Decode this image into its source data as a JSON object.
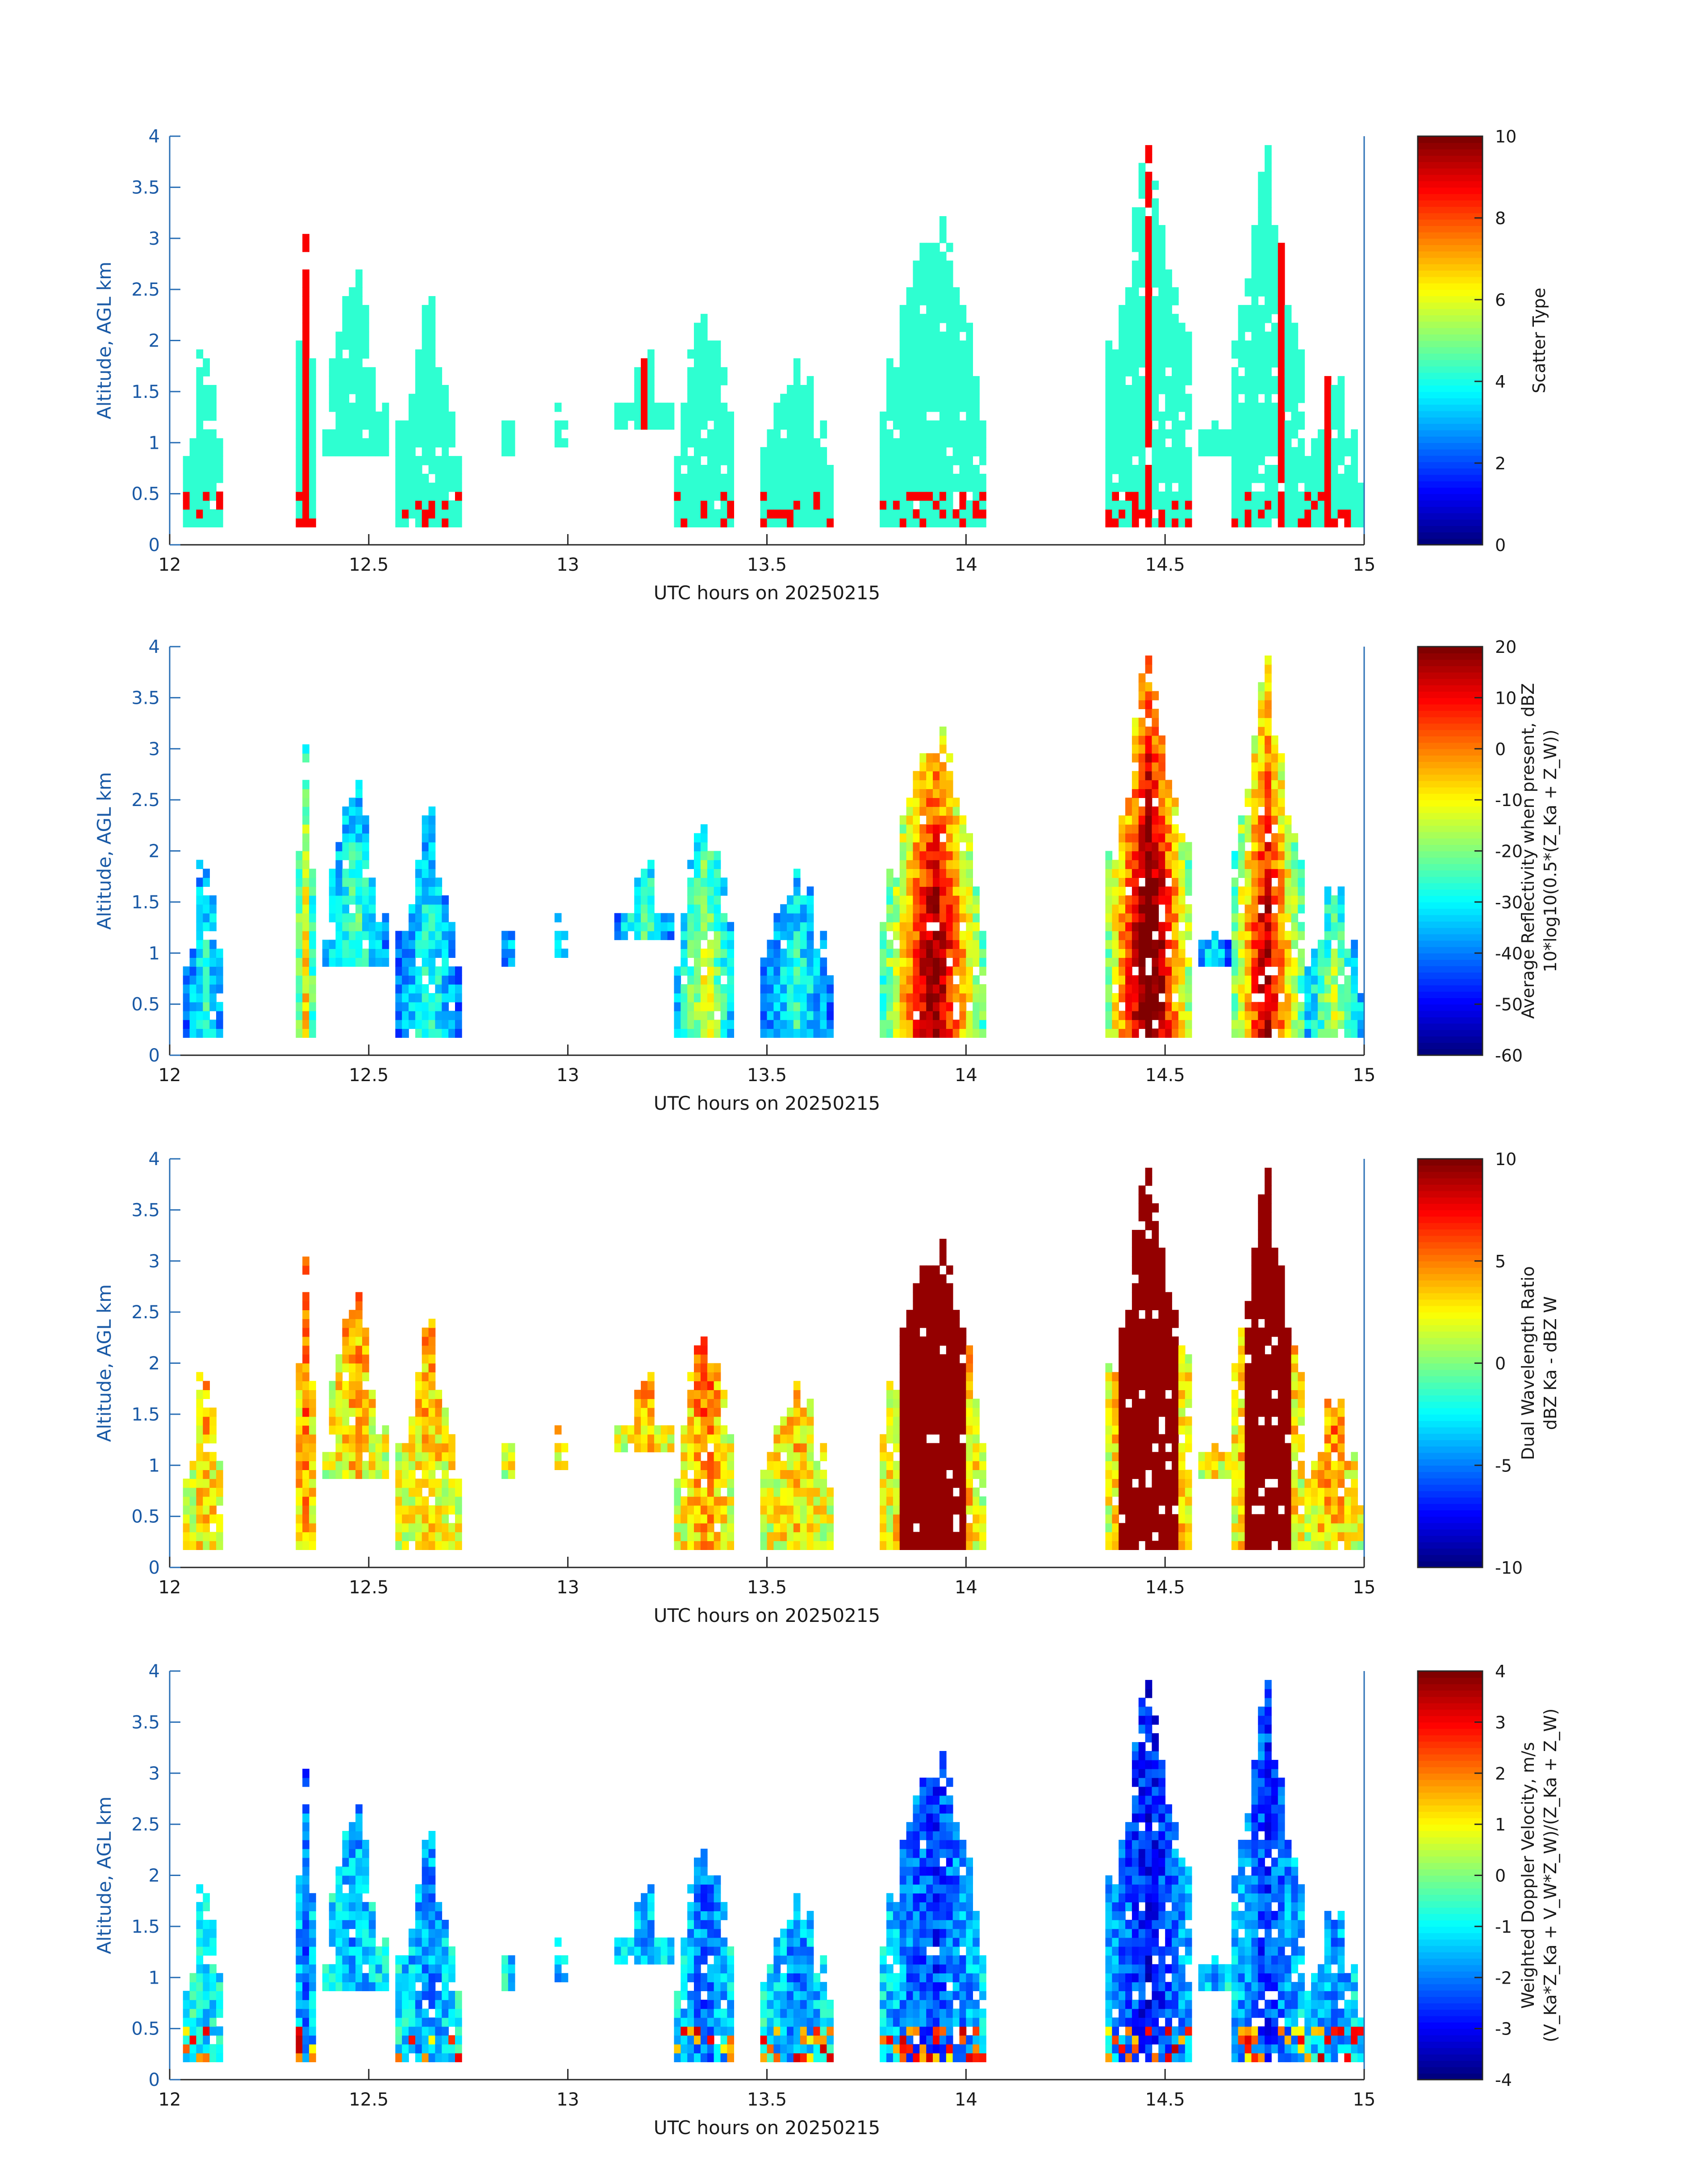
{
  "figure": {
    "xlabel": "UTC hours on 20250215",
    "ylabel": "Altitude, AGL km"
  },
  "chart_data": [
    {
      "type": "heatmap",
      "id": "scatter",
      "xlim": [
        12,
        15
      ],
      "ylim": [
        0,
        4
      ],
      "x_ticks": [
        "12",
        "12.5",
        "13",
        "13.5",
        "14",
        "14.5",
        "15"
      ],
      "y_ticks": [
        "0",
        "0.5",
        "1",
        "1.5",
        "2",
        "2.5",
        "3",
        "3.5",
        "4"
      ],
      "xlabel": "UTC hours on 20250215",
      "ylabel": "Altitude, AGL km",
      "colorbar": {
        "min": 0,
        "max": 10,
        "ticks": [
          "0",
          "2",
          "4",
          "6",
          "8",
          "10"
        ],
        "label_lines": [
          "Scatter Type"
        ]
      }
    },
    {
      "type": "heatmap",
      "id": "reflectivity",
      "xlim": [
        12,
        15
      ],
      "ylim": [
        0,
        4
      ],
      "x_ticks": [
        "12",
        "12.5",
        "13",
        "13.5",
        "14",
        "14.5",
        "15"
      ],
      "y_ticks": [
        "0",
        "0.5",
        "1",
        "1.5",
        "2",
        "2.5",
        "3",
        "3.5",
        "4"
      ],
      "xlabel": "UTC hours on 20250215",
      "ylabel": "Altitude, AGL km",
      "colorbar": {
        "min": -60,
        "max": 20,
        "ticks": [
          "-60",
          "-50",
          "-40",
          "-30",
          "-20",
          "-10",
          "0",
          "10",
          "20"
        ],
        "label_lines": [
          "Average Reflectivity when present, dBZ",
          "10*log10(0.5*(Z_Ka + Z_W))"
        ]
      }
    },
    {
      "type": "heatmap",
      "id": "dwr",
      "xlim": [
        12,
        15
      ],
      "ylim": [
        0,
        4
      ],
      "x_ticks": [
        "12",
        "12.5",
        "13",
        "13.5",
        "14",
        "14.5",
        "15"
      ],
      "y_ticks": [
        "0",
        "0.5",
        "1",
        "1.5",
        "2",
        "2.5",
        "3",
        "3.5",
        "4"
      ],
      "xlabel": "UTC hours on 20250215",
      "ylabel": "Altitude, AGL km",
      "colorbar": {
        "min": -10,
        "max": 10,
        "ticks": [
          "-10",
          "-5",
          "0",
          "5",
          "10"
        ],
        "label_lines": [
          "Dual Wavelength Ratio",
          "dBZ Ka - dBZ W"
        ]
      }
    },
    {
      "type": "heatmap",
      "id": "doppler",
      "xlim": [
        12,
        15
      ],
      "ylim": [
        0,
        4
      ],
      "x_ticks": [
        "12",
        "12.5",
        "13",
        "13.5",
        "14",
        "14.5",
        "15"
      ],
      "y_ticks": [
        "0",
        "0.5",
        "1",
        "1.5",
        "2",
        "2.5",
        "3",
        "3.5",
        "4"
      ],
      "xlabel": "UTC hours on 20250215",
      "ylabel": "Altitude, AGL km",
      "colorbar": {
        "min": -4,
        "max": 4,
        "ticks": [
          "-4",
          "-3",
          "-2",
          "-1",
          "0",
          "1",
          "2",
          "3",
          "4"
        ],
        "label_lines": [
          "Weighted Doppler Velocity, m/s",
          "(V_Ka*Z_Ka + V_W*Z_W)/(Z_Ka + Z_W)"
        ]
      }
    }
  ],
  "echo_regions": [
    {
      "t0": 12.04,
      "t1": 12.14,
      "b": 0.2,
      "top": 2.1,
      "core": 0.3,
      "src": 0.2
    },
    {
      "t0": 12.31,
      "t1": 12.37,
      "b": 0.2,
      "top": 2.95,
      "core": 0.55,
      "src": 0.4
    },
    {
      "t0": 12.38,
      "t1": 12.55,
      "b": 0.9,
      "top": 2.7,
      "core": 0.35,
      "src": 0.3
    },
    {
      "t0": 12.57,
      "t1": 12.73,
      "b": 0.2,
      "top": 2.45,
      "core": 0.3,
      "src": 0.35
    },
    {
      "t0": 12.84,
      "t1": 12.87,
      "b": 0.9,
      "top": 1.3,
      "core": 0.25,
      "src": 0.3
    },
    {
      "t0": 12.96,
      "t1": 13.0,
      "b": 0.95,
      "top": 1.5,
      "core": 0.25,
      "src": 0.3
    },
    {
      "t0": 13.12,
      "t1": 13.27,
      "b": 1.1,
      "top": 2.1,
      "core": 0.35,
      "src": 0.3
    },
    {
      "t0": 13.27,
      "t1": 13.42,
      "b": 0.2,
      "top": 2.35,
      "core": 0.5,
      "src": 0.4
    },
    {
      "t0": 13.49,
      "t1": 13.66,
      "b": 0.2,
      "top": 2.0,
      "core": 0.3,
      "src": 0.35
    },
    {
      "t0": 13.79,
      "t1": 14.05,
      "b": 0.2,
      "top": 3.3,
      "core": 0.9,
      "src": 0.5
    },
    {
      "t0": 14.35,
      "t1": 14.57,
      "b": 0.2,
      "top": 4.0,
      "core": 1.0,
      "src": 0.6
    },
    {
      "t0": 14.59,
      "t1": 14.66,
      "b": 0.85,
      "top": 1.35,
      "core": 0.3,
      "src": 0.3
    },
    {
      "t0": 14.66,
      "t1": 14.85,
      "b": 0.2,
      "top": 3.75,
      "core": 0.85,
      "src": 0.5
    },
    {
      "t0": 14.85,
      "t1": 15.0,
      "b": 0.2,
      "top": 1.65,
      "core": 0.45,
      "src": 0.35
    }
  ]
}
